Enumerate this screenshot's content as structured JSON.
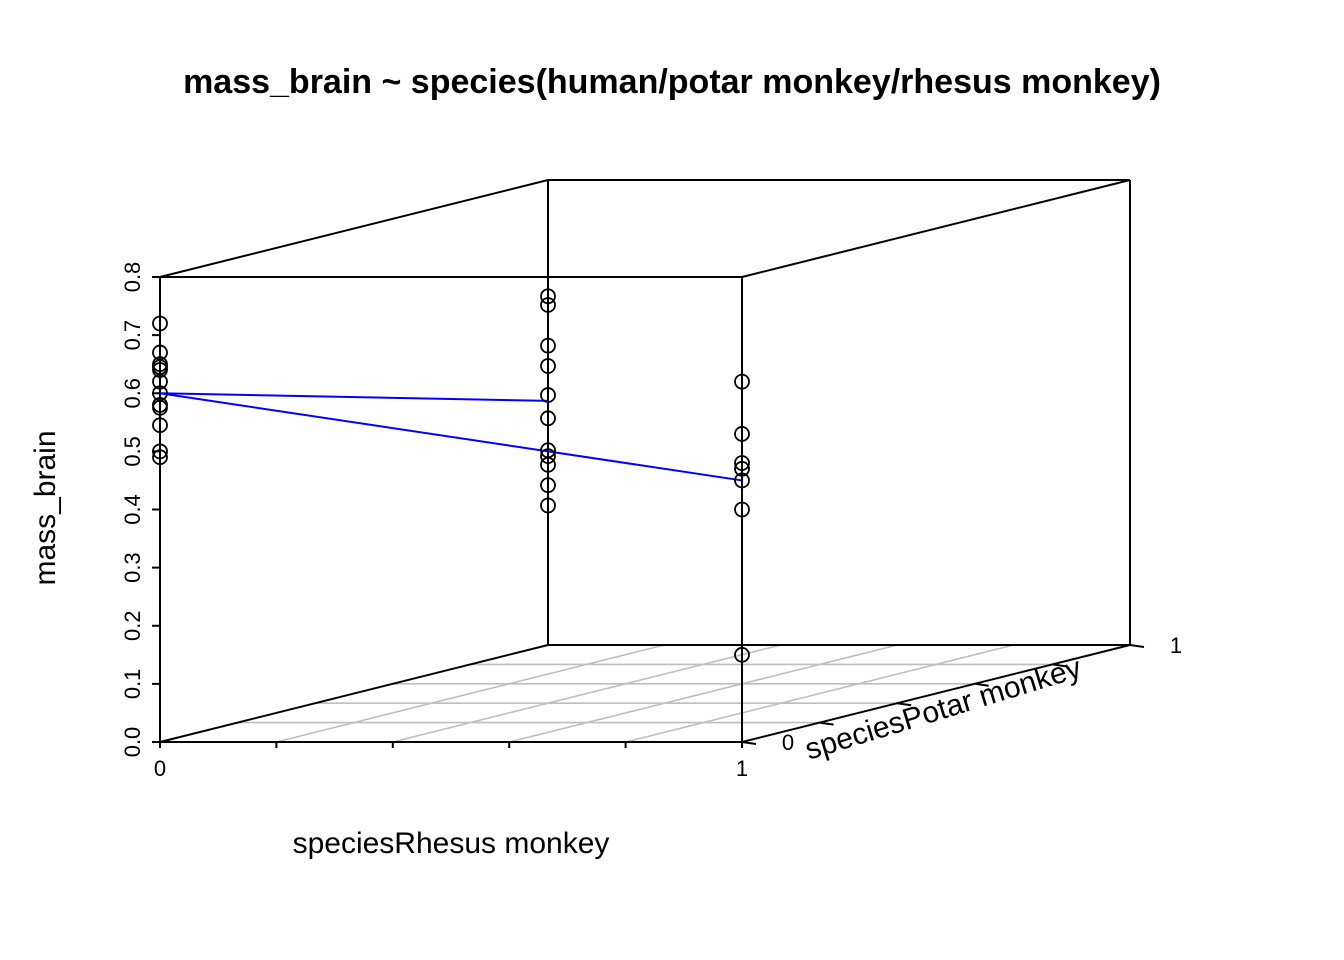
{
  "chart_data": {
    "type": "scatter3d",
    "title": "mass_brain ~ species(human/potar monkey/rhesus monkey)",
    "xlabel": "speciesRhesus monkey",
    "ylabel": "speciesPotar monkey",
    "zlabel": "mass_brain",
    "xlim": [
      0,
      1
    ],
    "ylim": [
      0,
      1
    ],
    "zlim": [
      0,
      0.8
    ],
    "x_ticks": [
      "0",
      "1"
    ],
    "y_ticks": [
      "0",
      "1"
    ],
    "z_ticks": [
      "0.0",
      "0.1",
      "0.2",
      "0.3",
      "0.4",
      "0.5",
      "0.6",
      "0.7",
      "0.8"
    ],
    "grid": "floor",
    "colors": {
      "points": "#000000",
      "fit_lines": "#0000ff",
      "box": "#000000",
      "grid": "#bebebe"
    },
    "groups": [
      {
        "label": "human",
        "x": 0,
        "y": 0,
        "mass_brain": [
          0.72,
          0.67,
          0.65,
          0.645,
          0.64,
          0.62,
          0.6,
          0.58,
          0.575,
          0.545,
          0.5,
          0.49
        ]
      },
      {
        "label": "rhesus monkey",
        "x": 1,
        "y": 0,
        "mass_brain": [
          0.62,
          0.53,
          0.48,
          0.47,
          0.45,
          0.4,
          0.15
        ]
      },
      {
        "label": "potar monkey",
        "x": 0,
        "y": 1,
        "mass_brain": [
          0.6,
          0.585,
          0.515,
          0.48,
          0.43,
          0.39,
          0.335,
          0.325,
          0.31,
          0.275,
          0.24
        ]
      }
    ],
    "fitted_plane": {
      "intercept": 0.6,
      "coef_speciesRhesus_monkey": -0.15,
      "coef_speciesPotar_monkey": -0.18,
      "lines": [
        {
          "from": [
            0,
            0,
            0.6
          ],
          "to": [
            1,
            0,
            0.45
          ]
        },
        {
          "from": [
            0,
            0,
            0.6
          ],
          "to": [
            0,
            1,
            0.42
          ]
        }
      ]
    }
  }
}
